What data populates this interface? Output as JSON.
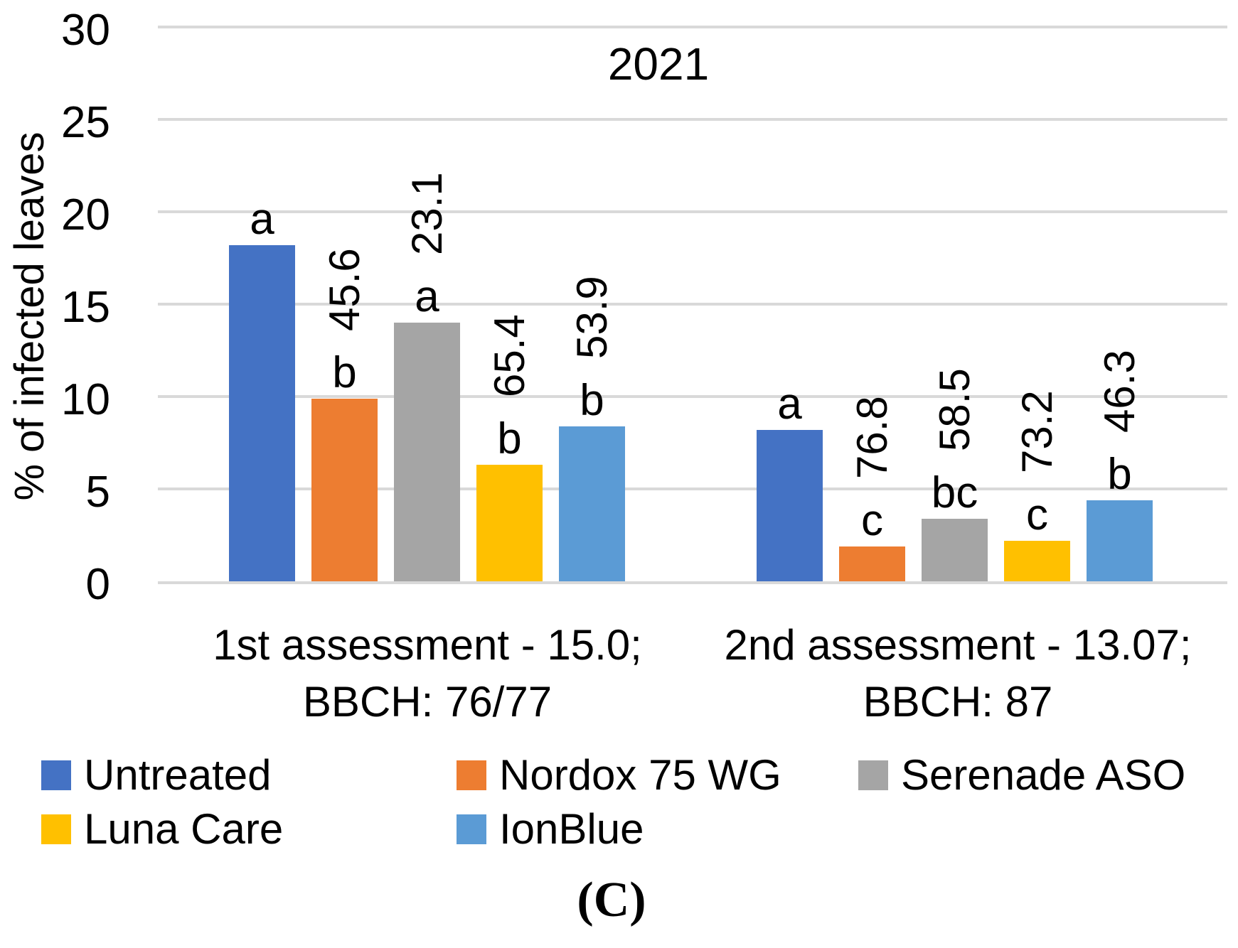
{
  "chart_data": {
    "type": "bar",
    "title": "2021",
    "ylabel": "% of infected leaves",
    "ylim": [
      0,
      30
    ],
    "yticks": [
      30,
      25,
      20,
      15,
      10,
      5,
      0
    ],
    "grid": "horizontal",
    "gridline_color": "#D9D9D9",
    "background": "#FFFFFF",
    "legend_position": "bottom",
    "categories": [
      [
        "1st assessment - 15.0;",
        "BBCH: 76/77"
      ],
      [
        "2nd assessment - 13.07;",
        "BBCH: 87"
      ]
    ],
    "series": [
      {
        "name": "Untreated",
        "color": "#4472C4",
        "values": [
          18.2,
          8.2
        ],
        "sig_letters": [
          "a",
          "a"
        ],
        "efficacy_labels": [
          "",
          ""
        ]
      },
      {
        "name": "Nordox 75 WG",
        "color": "#ED7D31",
        "values": [
          9.9,
          1.9
        ],
        "sig_letters": [
          "b",
          "c"
        ],
        "efficacy_labels": [
          "45.6",
          "76.8"
        ]
      },
      {
        "name": "Serenade ASO",
        "color": "#A5A5A5",
        "values": [
          14.0,
          3.4
        ],
        "sig_letters": [
          "a",
          "bc"
        ],
        "efficacy_labels": [
          "23.1",
          "58.5"
        ]
      },
      {
        "name": "Luna Care",
        "color": "#FFC000",
        "values": [
          6.3,
          2.2
        ],
        "sig_letters": [
          "b",
          "c"
        ],
        "efficacy_labels": [
          "65.4",
          "73.2"
        ]
      },
      {
        "name": "IonBlue",
        "color": "#5B9BD5",
        "values": [
          8.4,
          4.4
        ],
        "sig_letters": [
          "b",
          "b"
        ],
        "efficacy_labels": [
          "53.9",
          "46.3"
        ]
      }
    ],
    "panel_label": "(C)"
  }
}
